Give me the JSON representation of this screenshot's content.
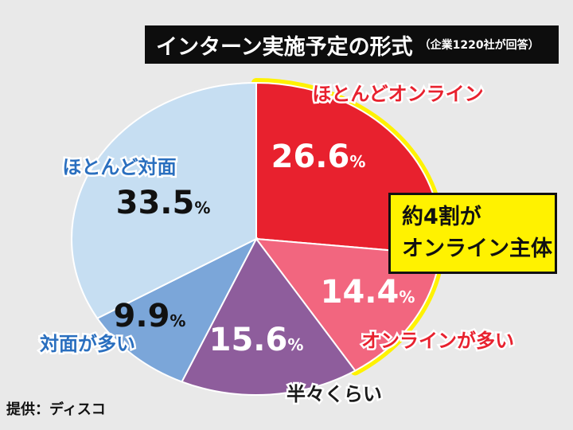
{
  "title": "インターン実施予定の形式",
  "subtitle": "（企業1220社が回答）",
  "callout": {
    "line1": "約4割が",
    "line2": "オンライン主体"
  },
  "source": "提供：ディスコ",
  "chart_data": {
    "type": "pie",
    "unit": "%",
    "slices": [
      {
        "label": "ほとんどオンライン",
        "value": 26.6,
        "color": "#e8212e",
        "label_color": "#e8212e",
        "value_color": "#ffffff"
      },
      {
        "label": "オンラインが多い",
        "value": 14.4,
        "color": "#f2667f",
        "label_color": "#e8212e",
        "value_color": "#ffffff"
      },
      {
        "label": "半々くらい",
        "value": 15.6,
        "color": "#8e5d9c",
        "label_color": "#1a1a1a",
        "value_color": "#ffffff"
      },
      {
        "label": "対面が多い",
        "value": 9.9,
        "color": "#7ba6d9",
        "label_color": "#2a6fbf",
        "value_color": "#111111"
      },
      {
        "label": "ほとんど対面",
        "value": 33.5,
        "color": "#c6def2",
        "label_color": "#2a6fbf",
        "value_color": "#111111"
      }
    ],
    "highlight": "ほとんどオンライン, オンラインが多い"
  }
}
